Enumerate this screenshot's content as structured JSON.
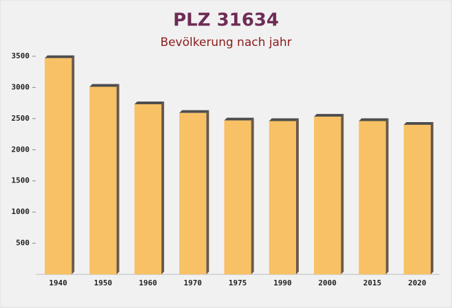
{
  "chart_data": {
    "type": "bar",
    "title": "PLZ 31634",
    "subtitle": "Bevölkerung nach jahr",
    "categories": [
      "1940",
      "1950",
      "1960",
      "1970",
      "1975",
      "1990",
      "2000",
      "2015",
      "2020"
    ],
    "values": [
      3470,
      3010,
      2730,
      2590,
      2470,
      2460,
      2530,
      2460,
      2400
    ],
    "color": "#f8c165",
    "ylim": [
      0,
      3500
    ],
    "yticks": [
      500,
      1000,
      1500,
      2000,
      2500,
      3000,
      3500
    ],
    "grid": false
  }
}
